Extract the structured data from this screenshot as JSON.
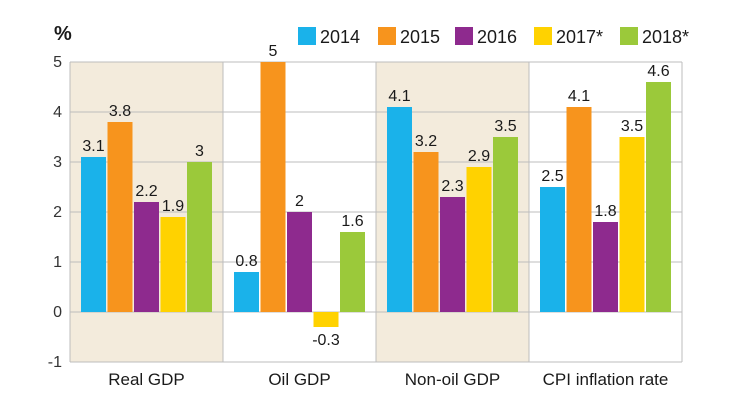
{
  "chart_data": {
    "type": "bar",
    "ylabel": "%",
    "ylim": [
      -1,
      5
    ],
    "yticks": [
      "-1",
      "0",
      "1",
      "2",
      "3",
      "4",
      "5"
    ],
    "categories": [
      "Real GDP",
      "Oil GDP",
      "Non-oil GDP",
      "CPI inflation rate"
    ],
    "shaded_categories": [
      0,
      2
    ],
    "series": [
      {
        "name": "2014",
        "color": "#1ab2ea",
        "values": [
          3.1,
          0.8,
          4.1,
          2.5
        ],
        "labels": [
          "3.1",
          "0.8",
          "4.1",
          "2.5"
        ]
      },
      {
        "name": "2015",
        "color": "#f7941d",
        "values": [
          3.8,
          5,
          3.2,
          4.1
        ],
        "labels": [
          "3.8",
          "5",
          "3.2",
          "4.1"
        ]
      },
      {
        "name": "2016",
        "color": "#8e2a8e",
        "values": [
          2.2,
          2,
          2.3,
          1.8
        ],
        "labels": [
          "2.2",
          "2",
          "2.3",
          "1.8"
        ]
      },
      {
        "name": "2017*",
        "color": "#ffd200",
        "values": [
          1.9,
          -0.3,
          2.9,
          3.5
        ],
        "labels": [
          "1.9",
          "-0.3",
          "2.9",
          "3.5"
        ]
      },
      {
        "name": "2018*",
        "color": "#9bc93a",
        "values": [
          3,
          1.6,
          3.5,
          4.6
        ],
        "labels": [
          "3",
          "1.6",
          "3.5",
          "4.6"
        ]
      }
    ],
    "colors": {
      "shade": "#f3ebdc",
      "grid": "#bdbdbd",
      "axis": "#555555"
    }
  }
}
